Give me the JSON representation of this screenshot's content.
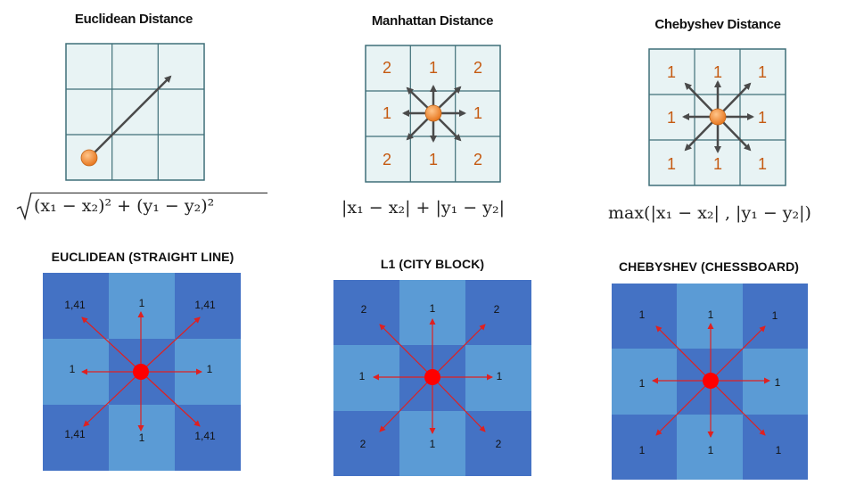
{
  "top": {
    "euclidean": {
      "title": "Euclidean Distance",
      "formula": "(x₁ − x₂)² + (y₁ − y₂)²"
    },
    "manhattan": {
      "title": "Manhattan Distance",
      "labels": [
        "2",
        "1",
        "2",
        "1",
        "",
        "1",
        "2",
        "1",
        "2"
      ],
      "formula": "|x₁ − x₂| + |y₁ − y₂|"
    },
    "chebyshev": {
      "title": "Chebyshev Distance",
      "labels": [
        "1",
        "1",
        "1",
        "1",
        "",
        "1",
        "1",
        "1",
        "1"
      ],
      "formula": "max(|x₁ − x₂| , |y₁ − y₂|)"
    }
  },
  "bottom": {
    "euclidean": {
      "title": "EUCLIDEAN (STRAIGHT LINE)",
      "labels": [
        "1,41",
        "1",
        "1,41",
        "1",
        "",
        "1",
        "1,41",
        "1",
        "1,41"
      ]
    },
    "city_block": {
      "title": "L1 (CITY BLOCK)",
      "labels": [
        "2",
        "1",
        "2",
        "1",
        "",
        "1",
        "2",
        "1",
        "2"
      ]
    },
    "chessboard": {
      "title": "CHEBYSHEV (CHESSBOARD)",
      "labels": [
        "1",
        "1",
        "1",
        "1",
        "",
        "1",
        "1",
        "1",
        "1"
      ]
    }
  },
  "colors": {
    "top_cell_fill": "#e6f2f3",
    "top_grid_line": "#3f6f78",
    "top_arrow": "#4a4a4a",
    "top_label": "#c55a11",
    "orange_dot": "#f0903a",
    "dark_blue": "#4472c4",
    "light_blue": "#5b9bd5",
    "red_arrow": "#e02020",
    "red_dot": "#ff0000"
  }
}
